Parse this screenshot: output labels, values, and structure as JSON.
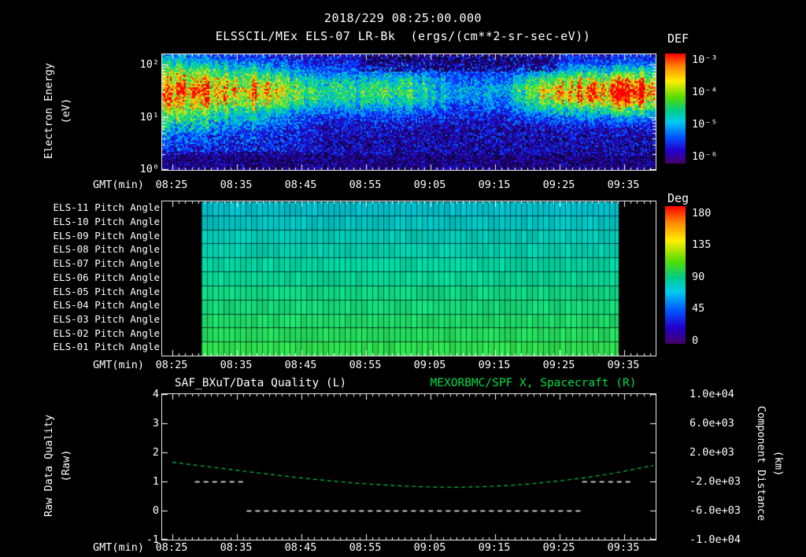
{
  "header": {
    "line1": "2018/229 08:25:00.000",
    "line2": "ELSSCIL/MEx ELS-07 LR-Bk  (ergs/(cm**2-sr-sec-eV))"
  },
  "axes": {
    "xlabel": "GMT(min)",
    "xticks": [
      "08:25",
      "08:35",
      "08:45",
      "08:55",
      "09:05",
      "09:15",
      "09:25",
      "09:35"
    ]
  },
  "spec": {
    "ylabel1": "Electron Energy",
    "ylabel2": "(eV)",
    "yticks": [
      "10²",
      "10¹",
      "10⁰"
    ]
  },
  "colorbar_def": {
    "title": "DEF",
    "ticks": [
      "10⁻³",
      "10⁻⁴",
      "10⁻⁵",
      "10⁻⁶"
    ]
  },
  "pitch": {
    "rows": [
      "ELS-11 Pitch Angle",
      "ELS-10 Pitch Angle",
      "ELS-09 Pitch Angle",
      "ELS-08 Pitch Angle",
      "ELS-07 Pitch Angle",
      "ELS-06 Pitch Angle",
      "ELS-05 Pitch Angle",
      "ELS-04 Pitch Angle",
      "ELS-03 Pitch Angle",
      "ELS-02 Pitch Angle",
      "ELS-01 Pitch Angle"
    ]
  },
  "colorbar_deg": {
    "title": "Deg",
    "ticks": [
      "180",
      "135",
      "90",
      "45",
      "0"
    ]
  },
  "bottom": {
    "title_left": "SAF_BXuT/Data Quality (L)",
    "title_right": "MEXORBMC/SPF X, Spacecraft (R)",
    "ylabel_left1": "Raw Data Quality",
    "ylabel_left2": "(Raw)",
    "yticks_left": [
      "4",
      "3",
      "2",
      "1",
      "0",
      "-1"
    ],
    "ylabel_right1": "Component Distance",
    "ylabel_right2": "(km)",
    "yticks_right": [
      "1.0e+04",
      "6.0e+03",
      "2.0e+03",
      "-2.0e+03",
      "-6.0e+03",
      "-1.0e+04"
    ]
  },
  "colors": {
    "background": "#000000",
    "axis": "#ffffff",
    "accent_green": "#00dd44"
  },
  "chart_data": [
    {
      "type": "heatmap",
      "title": "ELSSCIL/MEx ELS-07 LR-Bk (ergs/(cm**2-sr-sec-eV))",
      "xlabel": "GMT(min)",
      "x_range": [
        "08:25",
        "09:40"
      ],
      "ylabel": "Electron Energy (eV)",
      "y_scale": "log",
      "y_range": [
        1,
        158
      ],
      "colorbar": {
        "title": "DEF",
        "scale": "log",
        "range_low": "1e-6",
        "range_high": "1e-3"
      },
      "summary": "Bright green-yellow electron flux band between ~8 and ~80 eV, strongest 08:25-08:42 and 09:22-09:41; patchy dim blue background and dark gaps 08:55-09:20",
      "band_profile": {
        "t": [
          0,
          0.2,
          0.26,
          0.33,
          0.42,
          0.5,
          0.56,
          0.62,
          0.7,
          0.76,
          0.84,
          1.0
        ],
        "amp": [
          0.74,
          0.72,
          0.52,
          0.36,
          0.42,
          0.46,
          0.3,
          0.22,
          0.3,
          0.55,
          0.82,
          0.92
        ]
      }
    },
    {
      "type": "heatmap",
      "rows": [
        "ELS-11",
        "ELS-10",
        "ELS-09",
        "ELS-08",
        "ELS-07",
        "ELS-06",
        "ELS-05",
        "ELS-04",
        "ELS-03",
        "ELS-02",
        "ELS-01"
      ],
      "quantity": "Pitch Angle (Deg)",
      "colorbar": {
        "title": "Deg",
        "range": [
          0,
          180
        ]
      },
      "data_span_fraction": [
        0.08,
        0.925
      ],
      "row_values_deg": [
        80,
        82,
        85,
        87,
        90,
        92,
        95,
        97,
        100,
        102,
        105
      ]
    },
    {
      "type": "line",
      "title_left": "SAF_BXuT/Data Quality (L)",
      "title_right": "MEXORBMC/SPF X, Spacecraft (R)",
      "xlabel": "GMT(min)",
      "y_left": {
        "label": "Raw Data Quality (Raw)",
        "range": [
          -1,
          4
        ]
      },
      "y_right": {
        "label": "Component Distance (km)",
        "range": [
          -10000,
          10000
        ]
      },
      "series": [
        {
          "name": "MEXORBMC/SPF X Spacecraft",
          "axis": "right",
          "color": "#00cc44",
          "style": "dashed",
          "x_min": [
            0,
            4,
            8,
            12,
            16,
            20,
            24,
            28,
            32,
            36,
            40,
            44,
            48,
            52,
            56,
            60,
            64,
            68,
            72,
            74.5
          ],
          "raw_y": [
            1.66,
            1.55,
            1.44,
            1.33,
            1.22,
            1.12,
            1.03,
            0.95,
            0.89,
            0.84,
            0.81,
            0.8,
            0.82,
            0.86,
            0.93,
            1.02,
            1.13,
            1.27,
            1.44,
            1.55
          ]
        },
        {
          "name": "SAF_BXuT Data Quality",
          "axis": "left",
          "color": "#ffffff",
          "style": "dashed",
          "segments": [
            {
              "value": 1,
              "x_min": [
                3.5,
                11.5
              ]
            },
            {
              "value": 0,
              "x_min": [
                11.5,
                63.5
              ]
            },
            {
              "value": 1,
              "x_min": [
                63.5,
                71
              ]
            }
          ]
        }
      ]
    }
  ]
}
